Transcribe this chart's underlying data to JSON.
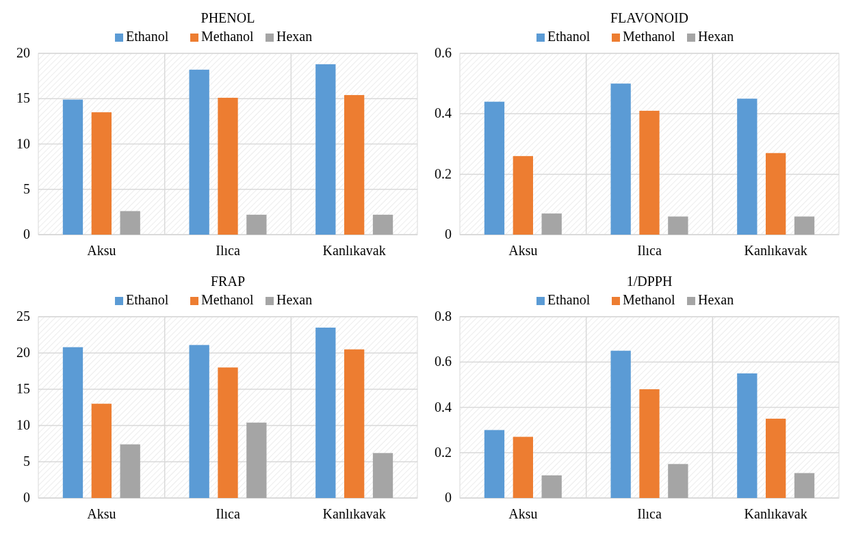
{
  "chart_data": [
    {
      "type": "bar",
      "title": "PHENOL",
      "categories": [
        "Aksu",
        "Ilıca",
        "Kanlıkavak"
      ],
      "series": [
        {
          "name": "Ethanol",
          "color": "#5b9bd5",
          "values": [
            14.9,
            18.2,
            18.8
          ]
        },
        {
          "name": "Methanol",
          "color": "#ed7d31",
          "values": [
            13.5,
            15.1,
            15.4
          ]
        },
        {
          "name": "Hexan",
          "color": "#a5a5a5",
          "values": [
            2.6,
            2.2,
            2.2
          ]
        }
      ],
      "ylim": [
        0,
        20
      ],
      "yticks": [
        0,
        5,
        10,
        15,
        20
      ],
      "grid": true,
      "legend": "top"
    },
    {
      "type": "bar",
      "title": "FLAVONOID",
      "categories": [
        "Aksu",
        "Ilıca",
        "Kanlıkavak"
      ],
      "series": [
        {
          "name": "Ethanol",
          "color": "#5b9bd5",
          "values": [
            0.44,
            0.5,
            0.45
          ]
        },
        {
          "name": "Methanol",
          "color": "#ed7d31",
          "values": [
            0.26,
            0.41,
            0.27
          ]
        },
        {
          "name": "Hexan",
          "color": "#a5a5a5",
          "values": [
            0.07,
            0.06,
            0.06
          ]
        }
      ],
      "ylim": [
        0,
        0.6
      ],
      "yticks": [
        0,
        0.2,
        0.4,
        0.6
      ],
      "grid": true,
      "legend": "top"
    },
    {
      "type": "bar",
      "title": "FRAP",
      "categories": [
        "Aksu",
        "Ilıca",
        "Kanlıkavak"
      ],
      "series": [
        {
          "name": "Ethanol",
          "color": "#5b9bd5",
          "values": [
            20.8,
            21.1,
            23.5
          ]
        },
        {
          "name": "Methanol",
          "color": "#ed7d31",
          "values": [
            13,
            18,
            20.5
          ]
        },
        {
          "name": "Hexan",
          "color": "#a5a5a5",
          "values": [
            7.4,
            10.4,
            6.2
          ]
        }
      ],
      "ylim": [
        0,
        25
      ],
      "yticks": [
        0,
        5,
        10,
        15,
        20,
        25
      ],
      "grid": true,
      "legend": "top"
    },
    {
      "type": "bar",
      "title": "1/DPPH",
      "categories": [
        "Aksu",
        "Ilıca",
        "Kanlıkavak"
      ],
      "series": [
        {
          "name": "Ethanol",
          "color": "#5b9bd5",
          "values": [
            0.3,
            0.65,
            0.55
          ]
        },
        {
          "name": "Methanol",
          "color": "#ed7d31",
          "values": [
            0.27,
            0.48,
            0.35
          ]
        },
        {
          "name": "Hexan",
          "color": "#a5a5a5",
          "values": [
            0.1,
            0.15,
            0.11
          ]
        }
      ],
      "ylim": [
        0,
        0.8
      ],
      "yticks": [
        0,
        0.2,
        0.4,
        0.6,
        0.8
      ],
      "grid": true,
      "legend": "top"
    }
  ]
}
